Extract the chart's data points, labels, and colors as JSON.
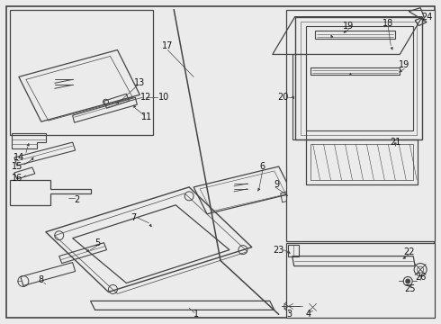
{
  "bg_color": "#ebebeb",
  "line_color": "#444444",
  "fig_width": 4.9,
  "fig_height": 3.6,
  "dpi": 100
}
